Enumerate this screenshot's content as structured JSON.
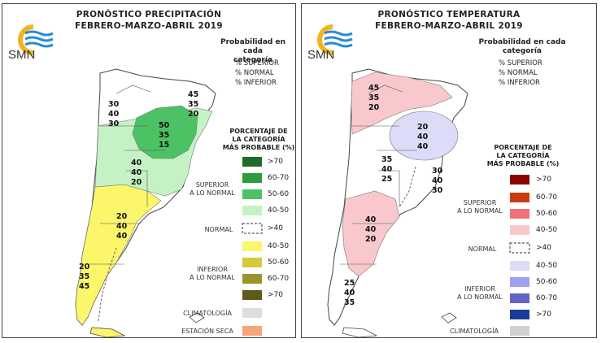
{
  "precip": {
    "title_line1": "PRONÓSTICO PRECIPITACIÓN",
    "title_line2": "FEBRERO-MARZO-ABRIL 2019",
    "logo_text": "SMN",
    "prob_heading_1": "Probabilidad en cada",
    "prob_heading_2": "categoría",
    "prob_items": [
      "% SUPERIOR",
      "% NORMAL",
      "% INFERIOR"
    ],
    "legend_heading": [
      "PORCENTAJE DE",
      "LA CATEGORÍA",
      "MÁS PROBABLE (%)"
    ],
    "legend": [
      {
        "label": ">70",
        "color": "#1e6b2a"
      },
      {
        "label": "60-70",
        "color": "#2e9c3c"
      },
      {
        "label": "50-60",
        "color": "#4cc264"
      },
      {
        "label": "40-50",
        "color": "#c4f2c4"
      },
      {
        "label": ">40",
        "color": "#ffffff"
      },
      {
        "label": "40-50",
        "color": "#fbf66a"
      },
      {
        "label": "50-60",
        "color": "#d2cb3a"
      },
      {
        "label": "60-70",
        "color": "#9a952a"
      },
      {
        "label": ">70",
        "color": "#5e5a1e"
      }
    ],
    "group_superior": [
      "SUPERIOR",
      "A LO NORMAL"
    ],
    "group_normal": "NORMAL",
    "group_inferior": [
      "INFERIOR",
      "A LO NORMAL"
    ],
    "climatologia": "CLIMATOLOGÍA",
    "climatologia_color": "#dddddd",
    "estacion_seca": "ESTACIÓN SECA",
    "estacion_seca_color": "#f5a57a",
    "map_labels": [
      [
        "45",
        "35",
        "20"
      ],
      [
        "30",
        "40",
        "30"
      ],
      [
        "50",
        "35",
        "15"
      ],
      [
        "40",
        "40",
        "20"
      ],
      [
        "20",
        "40",
        "40"
      ],
      [
        "20",
        "35",
        "45"
      ]
    ],
    "map_colors": {
      "green_light": "#c4f2c4",
      "green_mid": "#4cc264",
      "yellow": "#fbf66a"
    }
  },
  "temp": {
    "title_line1": "PRONÓSTICO TEMPERATURA",
    "title_line2": "FEBRERO-MARZO-ABRIL 2019",
    "logo_text": "SMN",
    "prob_heading_1": "Probabilidad en cada",
    "prob_heading_2": "categoría",
    "prob_items": [
      "% SUPERIOR",
      "% NORMAL",
      "% INFERIOR"
    ],
    "legend_heading": [
      "PORCENTAJE DE",
      "LA CATEGORÍA",
      "MÁS PROBABLE (%)"
    ],
    "legend": [
      {
        "label": ">70",
        "color": "#8b0000"
      },
      {
        "label": "60-70",
        "color": "#c83c14"
      },
      {
        "label": "50-60",
        "color": "#f07078"
      },
      {
        "label": "40-50",
        "color": "#f8c8cc"
      },
      {
        "label": ">40",
        "color": "#ffffff"
      },
      {
        "label": "40-50",
        "color": "#dcdcf8"
      },
      {
        "label": "50-60",
        "color": "#a0a0f0"
      },
      {
        "label": "60-70",
        "color": "#6464c8"
      },
      {
        "label": ">70",
        "color": "#1a3c96"
      }
    ],
    "group_superior": [
      "SUPERIOR",
      "A LO NORMAL"
    ],
    "group_normal": "NORMAL",
    "group_inferior": [
      "INFERIOR",
      "A LO NORMAL"
    ],
    "climatologia": "CLIMATOLOGÍA",
    "climatologia_color": "#d0d0d0",
    "map_labels": [
      [
        "45",
        "35",
        "20"
      ],
      [
        "20",
        "40",
        "40"
      ],
      [
        "35",
        "40",
        "25"
      ],
      [
        "30",
        "40",
        "30"
      ],
      [
        "40",
        "40",
        "20"
      ],
      [
        "25",
        "40",
        "35"
      ]
    ],
    "map_colors": {
      "pink": "#f8c8cc",
      "lavender": "#dcdcf8"
    }
  }
}
